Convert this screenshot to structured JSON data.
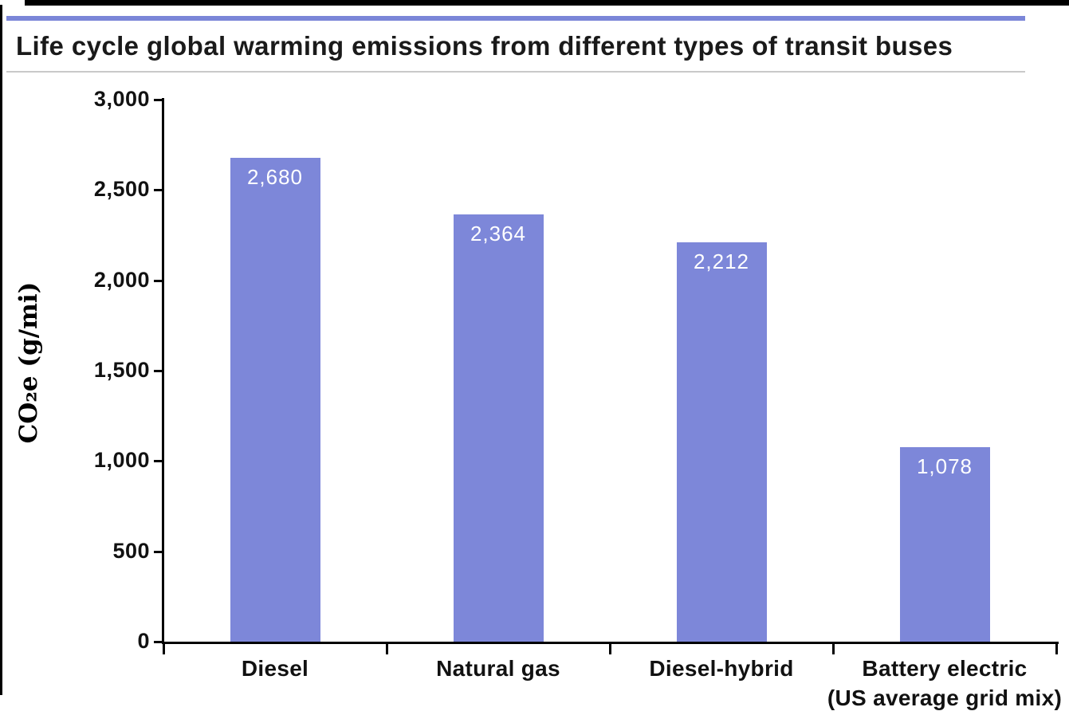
{
  "page": {
    "title": "Life cycle global warming emissions from different types of transit buses"
  },
  "colors": {
    "bar": "#7d87d9",
    "accent_rule": "#7b86d8",
    "title_text": "#1a1a1a",
    "divider_rule": "#c9c9c9",
    "axis": "#000000",
    "value_label_text": "#ffffff",
    "frame_border": "#000000"
  },
  "chart_data": {
    "type": "bar",
    "title": "Life cycle global warming emissions from different types of transit buses",
    "categories": [
      "Diesel",
      "Natural gas",
      "Diesel-hybrid",
      "Battery electric (US average grid mix)"
    ],
    "category_lines": [
      {
        "line1": "Diesel",
        "line2": ""
      },
      {
        "line1": "Natural gas",
        "line2": ""
      },
      {
        "line1": "Diesel-hybrid",
        "line2": ""
      },
      {
        "line1": "Battery electric",
        "line2": "(US average grid mix)"
      }
    ],
    "values": [
      2680,
      2364,
      2212,
      1078
    ],
    "value_labels": [
      "2,680",
      "2,364",
      "2,212",
      "1,078"
    ],
    "xlabel": "",
    "ylabel": "CO₂e (g/mi)",
    "ylim": [
      0,
      3000
    ],
    "ytick_interval": 500,
    "yticks": [
      "3,000",
      "2,500",
      "2,000",
      "1,500",
      "1,000",
      "500",
      "0"
    ],
    "grid": false,
    "legend": "none",
    "bar_color": "#7d87d9"
  }
}
